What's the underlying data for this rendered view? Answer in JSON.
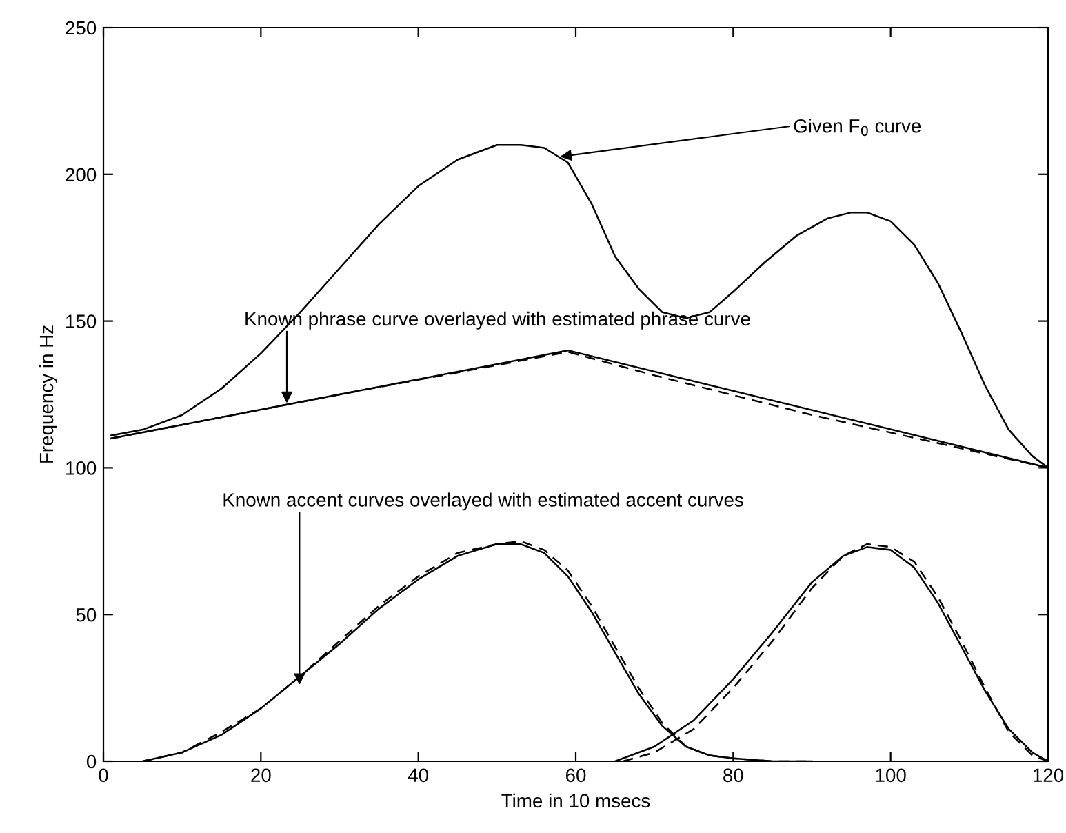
{
  "chart_data": {
    "type": "line",
    "xlabel": "Time in 10 msecs",
    "ylabel": "Frequency in Hz",
    "xlim": [
      0,
      120
    ],
    "xticks": [
      0,
      20,
      40,
      60,
      80,
      100,
      120
    ],
    "ylim": [
      0,
      250
    ],
    "yticks": [
      0,
      50,
      100,
      150,
      200,
      250
    ],
    "grid": false,
    "legend": false,
    "annotations": [
      {
        "text": "Given F$_{0}$ curve",
        "x": 58,
        "y": 206
      },
      {
        "text": "Known phrase curve overlayed with estimated phrase curve",
        "x": 23.3,
        "y": 122
      },
      {
        "text": "Known accent curves overlayed with estimated accent curves",
        "x": 24.9,
        "y": 26
      }
    ],
    "series": [
      {
        "color": "#000000",
        "line_style": "solid",
        "x": [
          1,
          5,
          10,
          15,
          20,
          25,
          30,
          35,
          40,
          45,
          50,
          53,
          56,
          59,
          62,
          65,
          68,
          71,
          74,
          77,
          80,
          84,
          88,
          92,
          95,
          97,
          100,
          103,
          106,
          109,
          112,
          115,
          118,
          120
        ],
        "values": [
          111,
          113,
          118,
          127,
          139,
          153,
          168,
          183,
          196,
          205,
          210,
          210,
          209,
          204,
          190,
          172,
          161,
          153,
          151,
          153,
          160,
          170,
          179,
          185,
          187,
          187,
          184,
          176,
          163,
          146,
          128,
          113,
          104,
          100
        ]
      },
      {
        "color": "#000000",
        "line_style": "solid",
        "x": [
          1,
          59,
          120
        ],
        "values": [
          110,
          140,
          100
        ]
      },
      {
        "color": "#000000",
        "line_style": "dashed",
        "x": [
          1,
          30,
          59,
          70,
          90,
          120
        ],
        "values": [
          110,
          125,
          139.5,
          131.5,
          118,
          100
        ]
      },
      {
        "color": "#000000",
        "line_style": "solid",
        "x": [
          5,
          10,
          15,
          20,
          25,
          30,
          35,
          40,
          45,
          50,
          53,
          56,
          59,
          62,
          65,
          68,
          71,
          74,
          77,
          80,
          85,
          90
        ],
        "values": [
          0,
          3,
          9,
          18,
          29,
          40,
          52,
          62,
          70,
          74,
          74,
          71,
          63,
          51,
          37,
          23,
          12,
          5,
          2,
          1,
          0,
          0
        ]
      },
      {
        "color": "#000000",
        "line_style": "dashed",
        "x": [
          5,
          10,
          15,
          20,
          25,
          30,
          35,
          40,
          45,
          50,
          53,
          56,
          59,
          62,
          65,
          68,
          71,
          74,
          77,
          80,
          85,
          90
        ],
        "values": [
          0,
          3,
          10,
          18,
          29,
          41,
          53,
          63,
          71,
          74,
          75,
          72,
          65,
          53,
          39,
          25,
          13,
          5,
          2,
          1,
          0,
          0
        ]
      },
      {
        "color": "#000000",
        "line_style": "solid",
        "x": [
          65,
          70,
          75,
          80,
          85,
          90,
          94,
          97,
          100,
          103,
          106,
          109,
          112,
          115,
          118,
          120
        ],
        "values": [
          0,
          5,
          14,
          28,
          44,
          61,
          70,
          73,
          72,
          66,
          54,
          39,
          24,
          11,
          3,
          0
        ]
      },
      {
        "color": "#000000",
        "line_style": "dashed",
        "x": [
          66,
          70,
          75,
          80,
          85,
          90,
          94,
          97,
          100,
          103,
          106,
          109,
          112,
          115,
          118,
          120
        ],
        "values": [
          0,
          3,
          11,
          25,
          41,
          59,
          70,
          74,
          73,
          68,
          56,
          41,
          25,
          10,
          2,
          0
        ]
      }
    ]
  }
}
